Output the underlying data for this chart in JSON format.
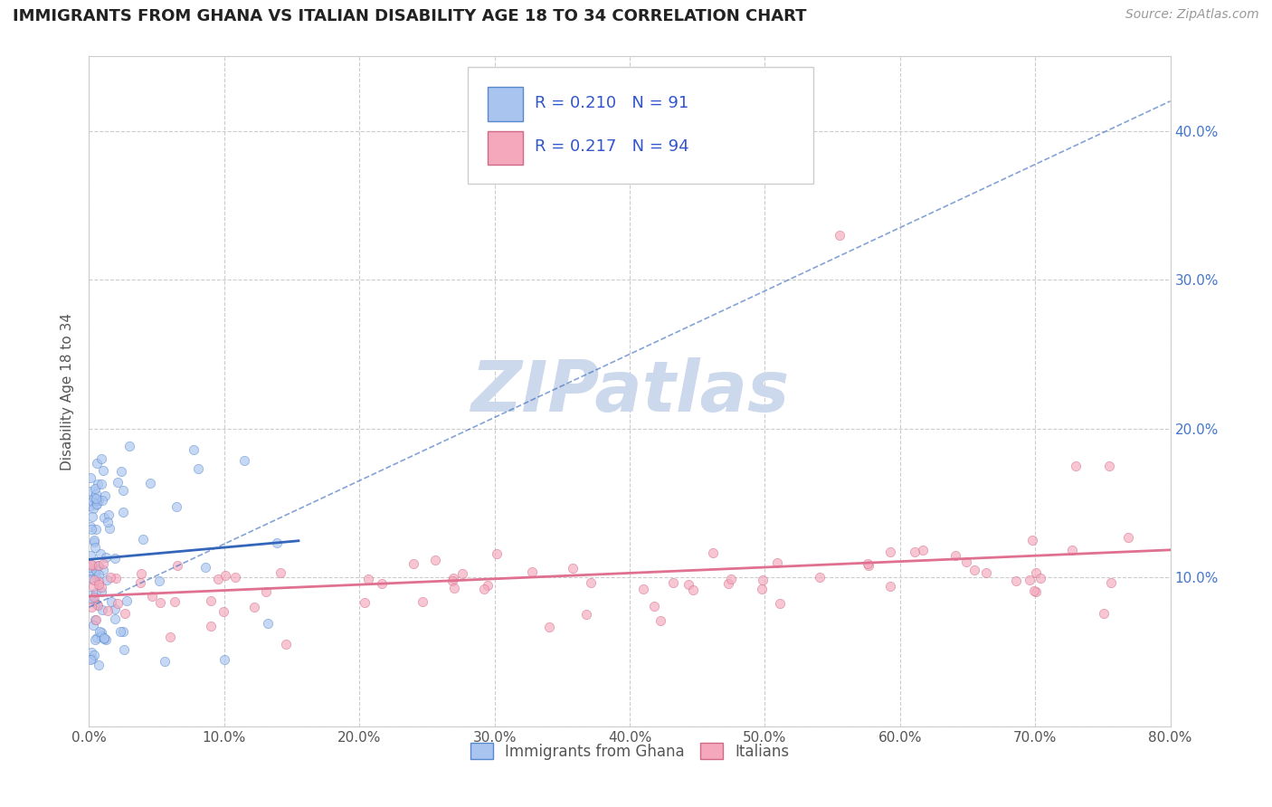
{
  "title": "IMMIGRANTS FROM GHANA VS ITALIAN DISABILITY AGE 18 TO 34 CORRELATION CHART",
  "source_text": "Source: ZipAtlas.com",
  "ylabel": "Disability Age 18 to 34",
  "xlim": [
    0.0,
    0.8
  ],
  "ylim": [
    0.0,
    0.45
  ],
  "ghana_color": "#aac4f0",
  "ghana_edge_color": "#5588cc",
  "italian_color": "#f5a8bc",
  "italian_edge_color": "#d06888",
  "ghana_line_color": "#3366bb",
  "italian_line_color": "#e07090",
  "watermark_color": "#ccd8ec",
  "R_ghana": 0.21,
  "N_ghana": 91,
  "R_italian": 0.217,
  "N_italian": 94,
  "legend_label_ghana": "Immigrants from Ghana",
  "legend_label_italian": "Italians",
  "title_color": "#222222",
  "axis_label_color": "#555555",
  "ytick_color": "#4477cc",
  "legend_text_color": "#3355cc",
  "marker_size": 55,
  "marker_alpha": 0.65,
  "grid_color": "#cccccc",
  "fig_bg_color": "#ffffff",
  "plot_bg_color": "#ffffff"
}
